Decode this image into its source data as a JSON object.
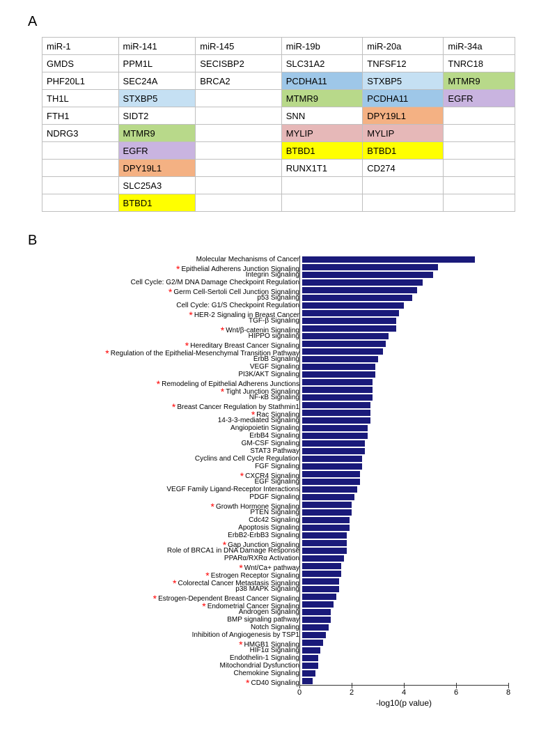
{
  "panelA": {
    "label": "A",
    "table": {
      "headers": [
        "miR-1",
        "miR-141",
        "miR-145",
        "miR-19b",
        "miR-20a",
        "miR-34a"
      ],
      "rows": [
        [
          {
            "text": "GMDS"
          },
          {
            "text": "PPM1L"
          },
          {
            "text": "SECISBP2"
          },
          {
            "text": "SLC31A2"
          },
          {
            "text": "TNFSF12"
          },
          {
            "text": "TNRC18"
          }
        ],
        [
          {
            "text": "PHF20L1"
          },
          {
            "text": "SEC24A"
          },
          {
            "text": "BRCA2"
          },
          {
            "text": "PCDHA11",
            "bg": "#9ec7e8"
          },
          {
            "text": "STXBP5",
            "bg": "#c5e0f3"
          },
          {
            "text": "MTMR9",
            "bg": "#b8d98a"
          }
        ],
        [
          {
            "text": "TH1L"
          },
          {
            "text": "STXBP5",
            "bg": "#c5e0f3"
          },
          {
            "text": ""
          },
          {
            "text": "MTMR9",
            "bg": "#b8d98a"
          },
          {
            "text": "PCDHA11",
            "bg": "#9ec7e8"
          },
          {
            "text": "EGFR",
            "bg": "#c9b4e0"
          }
        ],
        [
          {
            "text": "FTH1"
          },
          {
            "text": "SIDT2"
          },
          {
            "text": ""
          },
          {
            "text": "SNN"
          },
          {
            "text": "DPY19L1",
            "bg": "#f4b183"
          },
          {
            "text": ""
          }
        ],
        [
          {
            "text": "NDRG3"
          },
          {
            "text": "MTMR9",
            "bg": "#b8d98a"
          },
          {
            "text": ""
          },
          {
            "text": "MYLIP",
            "bg": "#e6b8b8"
          },
          {
            "text": "MYLIP",
            "bg": "#e6b8b8"
          },
          {
            "text": ""
          }
        ],
        [
          {
            "text": ""
          },
          {
            "text": "EGFR",
            "bg": "#c9b4e0"
          },
          {
            "text": ""
          },
          {
            "text": "BTBD1",
            "bg": "#ffff00"
          },
          {
            "text": "BTBD1",
            "bg": "#ffff00"
          },
          {
            "text": ""
          }
        ],
        [
          {
            "text": ""
          },
          {
            "text": "DPY19L1",
            "bg": "#f4b183"
          },
          {
            "text": ""
          },
          {
            "text": "RUNX1T1"
          },
          {
            "text": "CD274"
          },
          {
            "text": ""
          }
        ],
        [
          {
            "text": ""
          },
          {
            "text": "SLC25A3"
          },
          {
            "text": ""
          },
          {
            "text": ""
          },
          {
            "text": ""
          },
          {
            "text": ""
          }
        ],
        [
          {
            "text": ""
          },
          {
            "text": "BTBD1",
            "bg": "#ffff00"
          },
          {
            "text": ""
          },
          {
            "text": ""
          },
          {
            "text": ""
          },
          {
            "text": ""
          }
        ]
      ],
      "border_color": "#bfbfbf",
      "header_fontsize": 13,
      "cell_fontsize": 13
    }
  },
  "panelB": {
    "label": "B",
    "chart": {
      "type": "bar-horizontal",
      "bar_color": "#1a1a7a",
      "star_color": "#ff0000",
      "xlabel": "-log10(p value)",
      "xlim": [
        0,
        8
      ],
      "xtick_step": 2,
      "xticks": [
        0,
        2,
        4,
        6,
        8
      ],
      "label_fontsize": 10,
      "axis_fontsize": 11,
      "items": [
        {
          "label": "Molecular Mechanisms of Cancer",
          "value": 6.6,
          "star": false
        },
        {
          "label": "Epithelial Adherens Junction Signaling",
          "value": 5.2,
          "star": true
        },
        {
          "label": "Integrin Signaling",
          "value": 5.0,
          "star": false
        },
        {
          "label": "Cell Cycle: G2/M DNA Damage Checkpoint Regulation",
          "value": 4.6,
          "star": false
        },
        {
          "label": "Germ Cell-Sertoli Cell Junction Signaling",
          "value": 4.4,
          "star": true
        },
        {
          "label": "p53 Signaling",
          "value": 4.2,
          "star": false
        },
        {
          "label": "Cell Cycle: G1/S Checkpoint Regulation",
          "value": 3.9,
          "star": false
        },
        {
          "label": "HER-2 Signaling in Breast Cancer",
          "value": 3.7,
          "star": true
        },
        {
          "label": "TGF-β Signaling",
          "value": 3.6,
          "star": false
        },
        {
          "label": "Wnt/β-catenin Signaling",
          "value": 3.6,
          "star": true
        },
        {
          "label": "HIPPO signaling",
          "value": 3.3,
          "star": false
        },
        {
          "label": "Hereditary Breast Cancer Signaling",
          "value": 3.2,
          "star": true
        },
        {
          "label": "Regulation of the Epithelial-Mesenchymal Transition Pathway",
          "value": 3.1,
          "star": true
        },
        {
          "label": "ErbB Signaling",
          "value": 2.9,
          "star": false
        },
        {
          "label": "VEGF Signaling",
          "value": 2.8,
          "star": false
        },
        {
          "label": "PI3K/AKT Signaling",
          "value": 2.8,
          "star": false
        },
        {
          "label": "Remodeling of Epithelial Adherens Junctions",
          "value": 2.7,
          "star": true
        },
        {
          "label": "Tight Junction Signaling",
          "value": 2.7,
          "star": true
        },
        {
          "label": "NF-κB Signaling",
          "value": 2.7,
          "star": false
        },
        {
          "label": "Breast Cancer Regulation by Stathmin1",
          "value": 2.6,
          "star": true
        },
        {
          "label": "Rac Signaling",
          "value": 2.6,
          "star": true
        },
        {
          "label": "14-3-3-mediated Signaling",
          "value": 2.6,
          "star": false
        },
        {
          "label": "Angiopoietin Signaling",
          "value": 2.5,
          "star": false
        },
        {
          "label": "ErbB4 Signaling",
          "value": 2.5,
          "star": false
        },
        {
          "label": "GM-CSF Signaling",
          "value": 2.4,
          "star": false
        },
        {
          "label": "STAT3 Pathway",
          "value": 2.4,
          "star": false
        },
        {
          "label": "Cyclins and Cell Cycle Regulation",
          "value": 2.3,
          "star": false
        },
        {
          "label": "FGF Signaling",
          "value": 2.3,
          "star": false
        },
        {
          "label": "CXCR4 Signaling",
          "value": 2.2,
          "star": true
        },
        {
          "label": "EGF Signaling",
          "value": 2.2,
          "star": false
        },
        {
          "label": "VEGF Family Ligand-Receptor Interactions",
          "value": 2.1,
          "star": false
        },
        {
          "label": "PDGF Signaling",
          "value": 2.0,
          "star": false
        },
        {
          "label": "Growth Hormone Signaling",
          "value": 1.9,
          "star": true
        },
        {
          "label": "PTEN Signaling",
          "value": 1.9,
          "star": false
        },
        {
          "label": "Cdc42 Signaling",
          "value": 1.8,
          "star": false
        },
        {
          "label": "Apoptosis Signaling",
          "value": 1.8,
          "star": false
        },
        {
          "label": "ErbB2-ErbB3 Signaling",
          "value": 1.7,
          "star": false
        },
        {
          "label": "Gap Junction Signaling",
          "value": 1.7,
          "star": true
        },
        {
          "label": "Role of BRCA1 in DNA Damage Response",
          "value": 1.7,
          "star": false
        },
        {
          "label": "PPARα/RXRα Activation",
          "value": 1.6,
          "star": false
        },
        {
          "label": "Wnt/Ca+ pathway",
          "value": 1.5,
          "star": true
        },
        {
          "label": "Estrogen Receptor Signaling",
          "value": 1.5,
          "star": true
        },
        {
          "label": "Colorectal Cancer Metastasis Signaling",
          "value": 1.4,
          "star": true
        },
        {
          "label": "p38 MAPK Signaling",
          "value": 1.4,
          "star": false
        },
        {
          "label": "Estrogen-Dependent Breast Cancer Signaling",
          "value": 1.3,
          "star": true
        },
        {
          "label": "Endometrial Cancer Signaling",
          "value": 1.2,
          "star": true
        },
        {
          "label": "Androgen Signaling",
          "value": 1.1,
          "star": false
        },
        {
          "label": "BMP signaling pathway",
          "value": 1.1,
          "star": false
        },
        {
          "label": "Notch Signaling",
          "value": 1.0,
          "star": false
        },
        {
          "label": "Inhibition of Angiogenesis by TSP1",
          "value": 0.9,
          "star": false
        },
        {
          "label": "HMGB1 Signaling",
          "value": 0.8,
          "star": true
        },
        {
          "label": "HIF1α Signaling",
          "value": 0.7,
          "star": false
        },
        {
          "label": "Endothelin-1 Signaling",
          "value": 0.6,
          "star": false
        },
        {
          "label": "Mitochondrial Dysfunction",
          "value": 0.6,
          "star": false
        },
        {
          "label": "Chemokine Signaling",
          "value": 0.5,
          "star": false
        },
        {
          "label": "CD40 Signaling",
          "value": 0.4,
          "star": true
        }
      ]
    }
  }
}
